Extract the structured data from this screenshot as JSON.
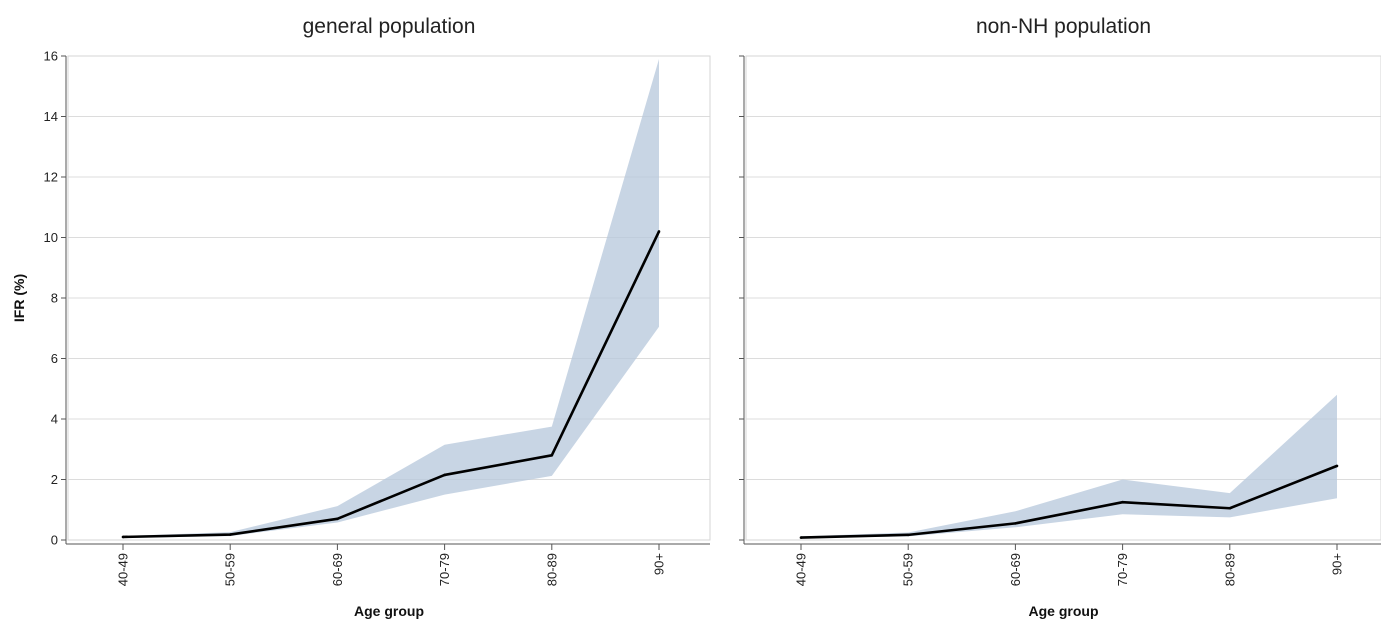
{
  "chart_data": {
    "type": "line",
    "ylabel": "IFR (%)",
    "ylim": [
      0,
      16
    ],
    "yticks": [
      0,
      2,
      4,
      6,
      8,
      10,
      12,
      14,
      16
    ],
    "grid": true,
    "colors": {
      "line": "#000000",
      "band": "#b8c9dc"
    },
    "panels": [
      {
        "title": "general population",
        "xlabel": "Age group",
        "categories": [
          "40-49",
          "50-59",
          "60-69",
          "70-79",
          "80-89",
          "90+"
        ],
        "series": [
          {
            "values": [
              0.1,
              0.18,
              0.7,
              2.15,
              2.8,
              10.2
            ],
            "lower": [
              0.07,
              0.13,
              0.58,
              1.5,
              2.12,
              7.05
            ],
            "upper": [
              0.13,
              0.26,
              1.12,
              3.15,
              3.75,
              15.9
            ]
          }
        ]
      },
      {
        "title": "non-NH population",
        "xlabel": "Age group",
        "categories": [
          "40-49",
          "50-59",
          "60-69",
          "70-79",
          "80-89",
          "90+"
        ],
        "series": [
          {
            "values": [
              0.08,
              0.17,
              0.55,
              1.25,
              1.05,
              2.45
            ],
            "lower": [
              0.06,
              0.12,
              0.42,
              0.85,
              0.75,
              1.38
            ],
            "upper": [
              0.12,
              0.25,
              0.95,
              2.0,
              1.55,
              4.8
            ]
          }
        ]
      }
    ]
  }
}
